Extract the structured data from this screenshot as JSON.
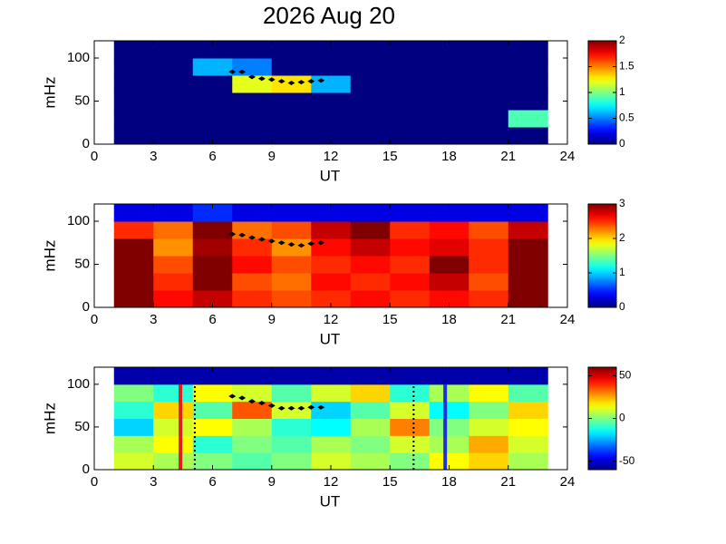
{
  "chart_data": [
    {
      "type": "heatmap",
      "title": "2026 Aug 20",
      "xlabel": "UT",
      "ylabel": "mHz",
      "colormap": "jet",
      "xlim": [
        0,
        24
      ],
      "xticks": [
        0,
        3,
        6,
        9,
        12,
        15,
        18,
        21,
        24
      ],
      "ylim": [
        0,
        120
      ],
      "yticks": [
        0,
        50,
        100
      ],
      "xbins": [
        1,
        3,
        5,
        7,
        9,
        11,
        13,
        15,
        17,
        19,
        21,
        23
      ],
      "ybins": [
        0,
        20,
        40,
        60,
        80,
        100,
        120
      ],
      "z": [
        [
          0,
          0,
          0,
          0,
          0,
          0,
          0,
          0,
          0,
          0,
          0
        ],
        [
          0,
          0,
          0,
          0,
          0,
          0,
          0,
          0,
          0,
          0,
          0.9
        ],
        [
          0,
          0,
          0,
          0,
          0,
          0,
          0,
          0,
          0,
          0,
          0
        ],
        [
          0,
          0,
          0,
          1.2,
          1.3,
          0.6,
          0,
          0,
          0,
          0,
          0
        ],
        [
          0,
          0,
          0.6,
          0.5,
          0,
          0,
          0,
          0,
          0,
          0,
          0
        ],
        [
          0,
          0,
          0,
          0,
          0,
          0,
          0,
          0,
          0,
          0,
          0
        ]
      ],
      "zlim": [
        0,
        2
      ],
      "zticks": [
        0,
        0.5,
        1,
        1.5,
        2
      ],
      "track": {
        "color": "#000000",
        "x": [
          7,
          7.5,
          8,
          8.5,
          9,
          9.5,
          10,
          10.5,
          11,
          11.5
        ],
        "y": [
          84,
          84,
          78,
          76,
          75,
          73,
          71,
          72,
          73,
          74
        ]
      }
    },
    {
      "type": "heatmap",
      "xlabel": "UT",
      "ylabel": "mHz",
      "colormap": "jet",
      "xlim": [
        0,
        24
      ],
      "xticks": [
        0,
        3,
        6,
        9,
        12,
        15,
        18,
        21,
        24
      ],
      "ylim": [
        0,
        120
      ],
      "yticks": [
        0,
        50,
        100
      ],
      "xbins": [
        1,
        3,
        5,
        7,
        9,
        11,
        13,
        15,
        17,
        19,
        21,
        23
      ],
      "ybins": [
        0,
        20,
        40,
        60,
        80,
        100,
        120
      ],
      "z": [
        [
          3,
          2.6,
          2.8,
          2.5,
          2.4,
          2.5,
          2.6,
          2.5,
          2.6,
          2.5,
          3
        ],
        [
          3,
          2.5,
          3,
          2.4,
          2.3,
          2.6,
          2.5,
          2.6,
          2.8,
          2.4,
          3
        ],
        [
          3,
          2.4,
          3,
          2.6,
          2.4,
          2.5,
          2.6,
          2.5,
          3,
          2.5,
          3
        ],
        [
          3,
          2.2,
          2.9,
          2.5,
          2.2,
          2.6,
          2.8,
          2.6,
          2.7,
          2.5,
          3
        ],
        [
          2.5,
          2.3,
          3,
          2.3,
          2.4,
          2.8,
          3,
          2.5,
          2.6,
          2.4,
          2.8
        ],
        [
          0.3,
          0.3,
          0.5,
          0.3,
          0.3,
          0.3,
          0.3,
          0.3,
          0.3,
          0.3,
          0.3
        ]
      ],
      "zlim": [
        0,
        3
      ],
      "zticks": [
        0,
        1,
        2,
        3
      ],
      "track": {
        "color": "#000000",
        "x": [
          7,
          7.5,
          8,
          8.5,
          9,
          9.5,
          10,
          10.5,
          11,
          11.5
        ],
        "y": [
          85,
          84,
          81,
          79,
          77,
          75,
          73,
          72,
          74,
          75
        ]
      }
    },
    {
      "type": "heatmap",
      "xlabel": "UT",
      "ylabel": "mHz",
      "colormap": "jet",
      "xlim": [
        0,
        24
      ],
      "xticks": [
        0,
        3,
        6,
        9,
        12,
        15,
        18,
        21,
        24
      ],
      "ylim": [
        0,
        120
      ],
      "yticks": [
        0,
        50,
        100
      ],
      "xbins": [
        1,
        3,
        5,
        7,
        9,
        11,
        13,
        15,
        17,
        19,
        21,
        23
      ],
      "ybins": [
        0,
        20,
        40,
        60,
        80,
        100,
        120
      ],
      "z": [
        [
          10,
          5,
          0,
          -5,
          0,
          10,
          5,
          0,
          15,
          20,
          5
        ],
        [
          5,
          15,
          -10,
          0,
          -5,
          5,
          0,
          10,
          5,
          25,
          10
        ],
        [
          -20,
          10,
          15,
          5,
          -10,
          -15,
          5,
          30,
          0,
          10,
          15
        ],
        [
          -10,
          20,
          -5,
          35,
          10,
          -20,
          -5,
          10,
          -15,
          0,
          20
        ],
        [
          0,
          -10,
          15,
          10,
          -5,
          10,
          20,
          -10,
          5,
          15,
          -5
        ],
        [
          -55,
          -55,
          -55,
          -55,
          -55,
          -55,
          -55,
          -55,
          -55,
          -55,
          -55
        ]
      ],
      "zlim": [
        -60,
        60
      ],
      "zticks": [
        -50,
        0,
        50
      ],
      "track": {
        "color": "#000000",
        "x": [
          7,
          7.5,
          8,
          8.5,
          9,
          9.5,
          10,
          10.5,
          11,
          11.5
        ],
        "y": [
          86,
          84,
          80,
          78,
          75,
          72,
          72,
          72,
          73,
          73
        ]
      },
      "vlines": [
        {
          "x": 4.37,
          "y": [
            0,
            100
          ],
          "color": "#e02020",
          "dash": false
        },
        {
          "x": 5.1,
          "y": [
            0,
            100
          ],
          "color": "#000000",
          "dash": true
        },
        {
          "x": 16.2,
          "y": [
            0,
            100
          ],
          "color": "#000000",
          "dash": true
        },
        {
          "x": 17.8,
          "y": [
            0,
            100
          ],
          "color": "#2030e0",
          "dash": false
        }
      ]
    }
  ]
}
